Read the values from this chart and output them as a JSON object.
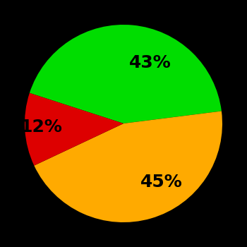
{
  "slices": [
    43,
    45,
    12
  ],
  "colors": [
    "#00dd00",
    "#ffaa00",
    "#dd0000"
  ],
  "labels": [
    "43%",
    "45%",
    "12%"
  ],
  "background_color": "#000000",
  "text_color": "#000000",
  "font_size": 18,
  "font_weight": "bold",
  "startangle": 162,
  "figsize": [
    3.5,
    3.5
  ],
  "dpi": 100
}
